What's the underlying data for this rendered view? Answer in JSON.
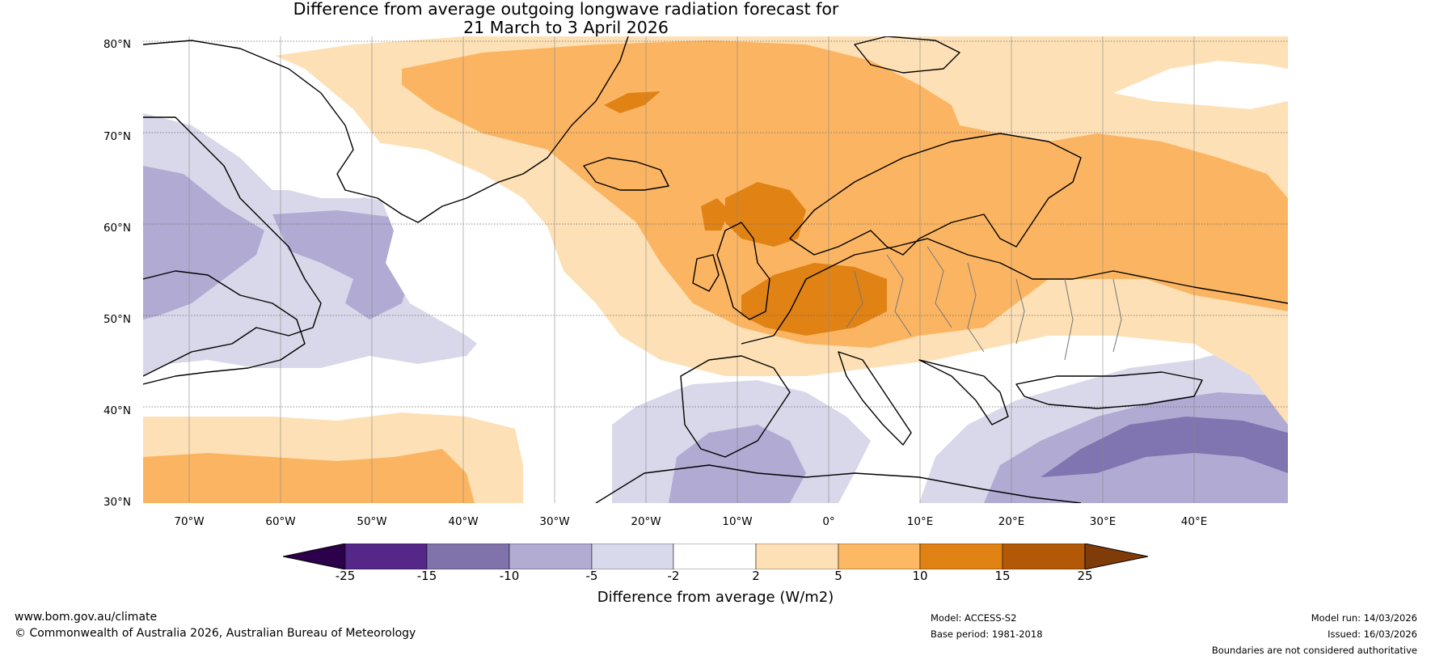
{
  "title": {
    "line1": "Difference from average outgoing longwave radiation forecast for",
    "line2": "21 March to 3 April 2026"
  },
  "map": {
    "lat_labels": [
      "80°N",
      "70°N",
      "60°N",
      "50°N",
      "40°N",
      "30°N"
    ],
    "lon_labels": [
      "70°W",
      "60°W",
      "50°W",
      "40°W",
      "30°W",
      "20°W",
      "10°W",
      "0°",
      "10°E",
      "20°E",
      "30°E",
      "40°E"
    ],
    "lat_values": [
      80,
      70,
      60,
      50,
      40,
      30
    ],
    "lon_values": [
      -70,
      -60,
      -50,
      -40,
      -30,
      -20,
      -10,
      0,
      10,
      20,
      30,
      40
    ],
    "lon_range": [
      -75,
      50
    ],
    "lat_range": [
      30,
      81
    ],
    "colors": {
      "ocean_neutral": "#ffffff",
      "light_purple": "#d8d8ea",
      "mid_purple": "#b1abd3",
      "dark_purple": "#8075b0",
      "light_orange": "#fde0b5",
      "mid_orange": "#fbb562",
      "dark_orange": "#e08214",
      "coast": "#000000",
      "border": "#777777"
    }
  },
  "colorbar": {
    "title": "Difference from average (W/m2)",
    "ticks": [
      "-25",
      "-15",
      "-10",
      "-5",
      "-2",
      "2",
      "5",
      "10",
      "15",
      "25"
    ],
    "colors": [
      "#2d004b",
      "#542788",
      "#8073ac",
      "#b2abd2",
      "#d8daeb",
      "#ffffff",
      "#fee0b6",
      "#fdb863",
      "#e08214",
      "#b35806",
      "#7f3b08"
    ]
  },
  "footer": {
    "left_line1": "www.bom.gov.au/climate",
    "left_line2": "© Commonwealth of Australia 2026, Australian Bureau of Meteorology",
    "model": "Model: ACCESS-S2",
    "base_period": "Base period: 1981-2018",
    "model_run": "Model run: 14/03/2026",
    "issued": "Issued: 16/03/2026",
    "disclaimer": "Boundaries are not considered authoritative"
  }
}
